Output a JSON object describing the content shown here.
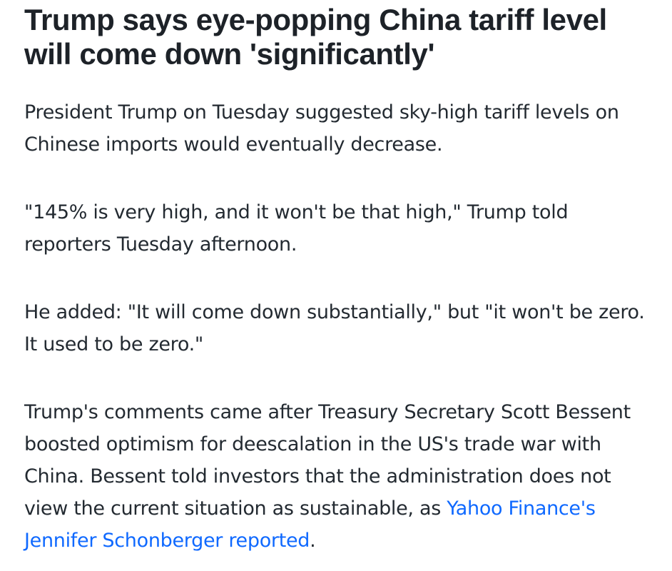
{
  "article": {
    "headline": "Trump says eye-popping China tariff level will come down 'significantly'",
    "paragraphs": [
      "President Trump on Tuesday suggested sky-high tariff levels on Chinese imports would eventually decrease.",
      "\"145% is very high, and it won't be that high,\" Trump told reporters Tuesday afternoon.",
      "He added: \"It will come down substantially,\" but \"it won't be zero. It used to be zero.\""
    ],
    "last_paragraph": {
      "text": "Trump's comments came after Treasury Secretary Scott Bessent boosted optimism for deescalation in the US's trade war with China. Bessent told investors that the administration does not view the current situation as sustainable, as ",
      "link_text": "Yahoo Finance's Jennifer Schonberger reported",
      "end": "."
    },
    "link_color": "#0f69ff"
  }
}
